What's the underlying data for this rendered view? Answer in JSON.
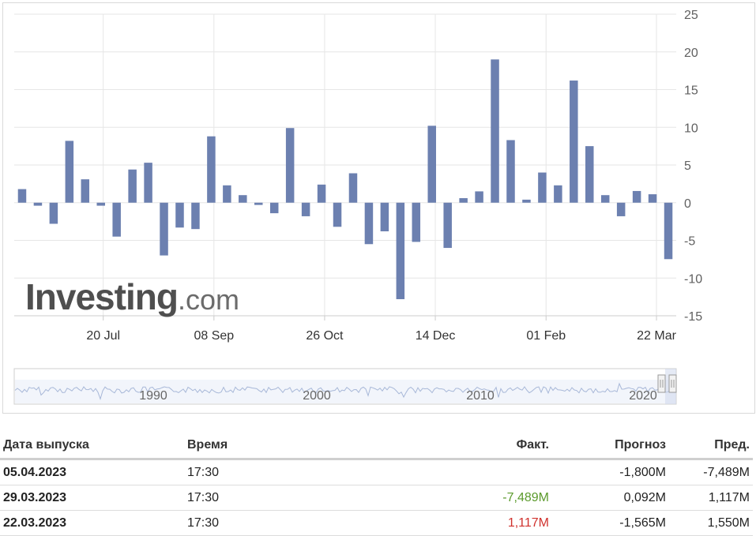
{
  "brand": {
    "name": "Investing",
    "suffix": ".com"
  },
  "colors": {
    "bar": "#6c80b0",
    "positive": "#5b9a2c",
    "negative": "#d0312d"
  },
  "chart_data": {
    "type": "bar",
    "title": "",
    "xlabel": "",
    "ylabel": "",
    "ylim": [
      -15,
      25
    ],
    "yticks": [
      25,
      20,
      15,
      10,
      5,
      0,
      -5,
      -10,
      -15
    ],
    "y_axis_side": "right",
    "grid": true,
    "x_tick_labels": [
      "20 Jul",
      "08 Sep",
      "26 Oct",
      "14 Dec",
      "01 Feb",
      "22 Mar"
    ],
    "values": [
      1.8,
      -0.4,
      -2.8,
      8.2,
      3.1,
      -0.4,
      -4.5,
      4.4,
      5.3,
      -7.0,
      -3.3,
      -3.5,
      8.8,
      2.3,
      1.0,
      -0.3,
      -1.4,
      9.9,
      -1.8,
      2.4,
      -3.2,
      3.9,
      -5.5,
      -3.8,
      -12.8,
      -5.2,
      10.2,
      -6.0,
      0.6,
      1.5,
      19.0,
      8.3,
      0.4,
      4.0,
      2.3,
      16.2,
      7.5,
      1.0,
      -1.8,
      1.55,
      1.117,
      -7.489
    ],
    "navigator_labels": [
      "1990",
      "2000",
      "2010",
      "2020"
    ]
  },
  "table": {
    "headers": {
      "date": "Дата выпуска",
      "time": "Время",
      "actual": "Факт.",
      "forecast": "Прогноз",
      "previous": "Пред."
    },
    "rows": [
      {
        "date": "05.04.2023",
        "time": "17:30",
        "actual": "",
        "actual_color": "",
        "forecast": "-1,800M",
        "previous": "-7,489M"
      },
      {
        "date": "29.03.2023",
        "time": "17:30",
        "actual": "-7,489M",
        "actual_color": "green",
        "forecast": "0,092M",
        "previous": "1,117M"
      },
      {
        "date": "22.03.2023",
        "time": "17:30",
        "actual": "1,117M",
        "actual_color": "red",
        "forecast": "-1,565M",
        "previous": "1,550M"
      }
    ]
  }
}
